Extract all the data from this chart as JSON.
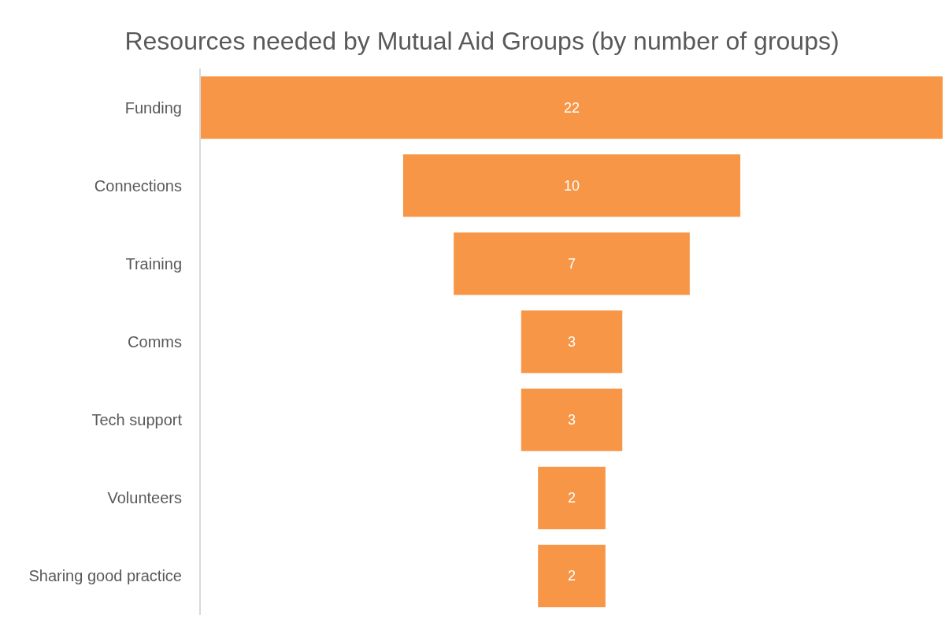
{
  "chart_data": {
    "type": "other",
    "title": "Resources needed by Mutual Aid Groups (by number of groups)",
    "categories": [
      "Funding",
      "Connections",
      "Training",
      "Comms",
      "Tech support",
      "Volunteers",
      "Sharing good practice"
    ],
    "values": [
      22,
      10,
      7,
      3,
      3,
      2,
      2
    ],
    "color": "#f79646",
    "data_labels": true
  }
}
